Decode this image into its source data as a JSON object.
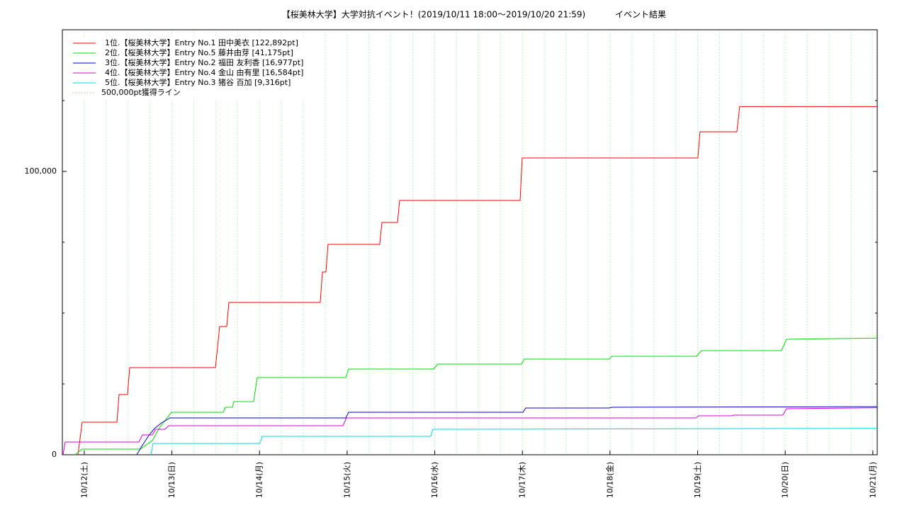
{
  "chart_data": {
    "type": "line",
    "title": "【桜美林大学】大学対抗イベント！(2019/10/11 18:00～2019/10/20 21:59)",
    "subtitle": "イベント結果",
    "xlim": [
      0.75,
      10.05
    ],
    "xticks": [
      {
        "value": 1,
        "label": "10/12(土)"
      },
      {
        "value": 2,
        "label": "10/13(日)"
      },
      {
        "value": 3,
        "label": "10/14(月)"
      },
      {
        "value": 4,
        "label": "10/15(火)"
      },
      {
        "value": 5,
        "label": "10/16(水)"
      },
      {
        "value": 6,
        "label": "10/17(木)"
      },
      {
        "value": 7,
        "label": "10/18(金)"
      },
      {
        "value": 8,
        "label": "10/19(土)"
      },
      {
        "value": 9,
        "label": "10/20(日)"
      },
      {
        "value": 10,
        "label": "10/21(月)"
      }
    ],
    "xminorticks": [
      1.25,
      1.5,
      1.75,
      2.25,
      2.5,
      2.75,
      3.25,
      3.5,
      3.75,
      4.25,
      4.5,
      4.75,
      5.25,
      5.5,
      5.75,
      6.25,
      6.5,
      6.75,
      7.25,
      7.5,
      7.75,
      8.25,
      8.5,
      8.75,
      9.25,
      9.5,
      9.75
    ],
    "ylim": [
      0,
      150000
    ],
    "yticks": [
      0,
      {
        "value": 100000,
        "label": "100,000"
      }
    ],
    "yminorticks": [
      25000,
      50000,
      75000,
      125000
    ],
    "grid": true,
    "legend": "upper left",
    "series": [
      {
        "name": "1位.【桜美林大学】Entry No.1 田中美衣 [122,892pt]",
        "color": "#ff0000",
        "x": [
          0.928,
          0.976,
          1.373,
          1.397,
          1.494,
          1.518,
          2.497,
          2.545,
          2.626,
          2.65,
          3.693,
          3.718,
          3.758,
          3.782,
          4.372,
          4.397,
          4.575,
          4.599,
          5.974,
          5.998,
          8.003,
          8.027,
          8.448,
          8.48,
          10.05
        ],
        "values": [
          0,
          11500,
          11500,
          21250,
          21250,
          30750,
          30750,
          45250,
          45250,
          53750,
          53750,
          64500,
          64500,
          74250,
          74250,
          82000,
          82000,
          89750,
          89750,
          104750,
          104750,
          114000,
          114000,
          122892,
          122892
        ]
      },
      {
        "name": "2位.【桜美林大学】Entry No.5 藤井由芽 [41,175pt]",
        "color": "#00dd00",
        "x": [
          0.896,
          0.976,
          1.639,
          1.777,
          1.858,
          1.914,
          1.995,
          2.586,
          2.61,
          2.691,
          2.707,
          2.933,
          2.974,
          3.984,
          4.017,
          4.987,
          5.036,
          5.99,
          6.022,
          6.992,
          7.017,
          7.987,
          8.044,
          8.957,
          9.014,
          10.05
        ],
        "values": [
          0,
          2000,
          2000,
          5000,
          9500,
          11750,
          15000,
          15000,
          16750,
          16750,
          18750,
          18750,
          27250,
          27250,
          30250,
          30250,
          32000,
          32000,
          33750,
          33750,
          34750,
          34750,
          36750,
          36750,
          40750,
          41175
        ]
      },
      {
        "name": "3位.【桜美林大学】Entry No.2 福田 友利香 [16,977pt]",
        "color": "#0000cc",
        "x": [
          1.599,
          1.656,
          1.736,
          1.801,
          1.882,
          1.979,
          3.984,
          4.017,
          6.006,
          6.038,
          6.992,
          7.017,
          10.05
        ],
        "values": [
          0,
          3000,
          6750,
          9250,
          11250,
          13000,
          13000,
          15000,
          15000,
          16500,
          16500,
          16750,
          16977
        ]
      },
      {
        "name": "4位.【桜美林大学】Entry No.4 金山 由有里 [16,584pt]",
        "color": "#dd00dd",
        "x": [
          0.758,
          0.782,
          1.623,
          1.664,
          1.777,
          1.817,
          1.922,
          1.963,
          3.952,
          3.992,
          7.979,
          8.011,
          8.391,
          8.416,
          8.973,
          9.014,
          10.05
        ],
        "values": [
          0,
          4500,
          4500,
          7000,
          7000,
          9000,
          9000,
          10250,
          10250,
          13000,
          13000,
          13750,
          13750,
          14000,
          14000,
          16250,
          16584
        ]
      },
      {
        "name": "5位.【桜美林大学】Entry No.3 猪谷 百加 [9,316pt]",
        "color": "#00dddd",
        "x": [
          1.761,
          1.785,
          3.006,
          3.03,
          4.955,
          4.979,
          10.05
        ],
        "values": [
          0,
          4000,
          4000,
          6500,
          6500,
          9000,
          9316
        ]
      }
    ],
    "reference_lines": [
      {
        "name": "500,000pt獲得ライン",
        "color": "#66cc66"
      }
    ]
  }
}
